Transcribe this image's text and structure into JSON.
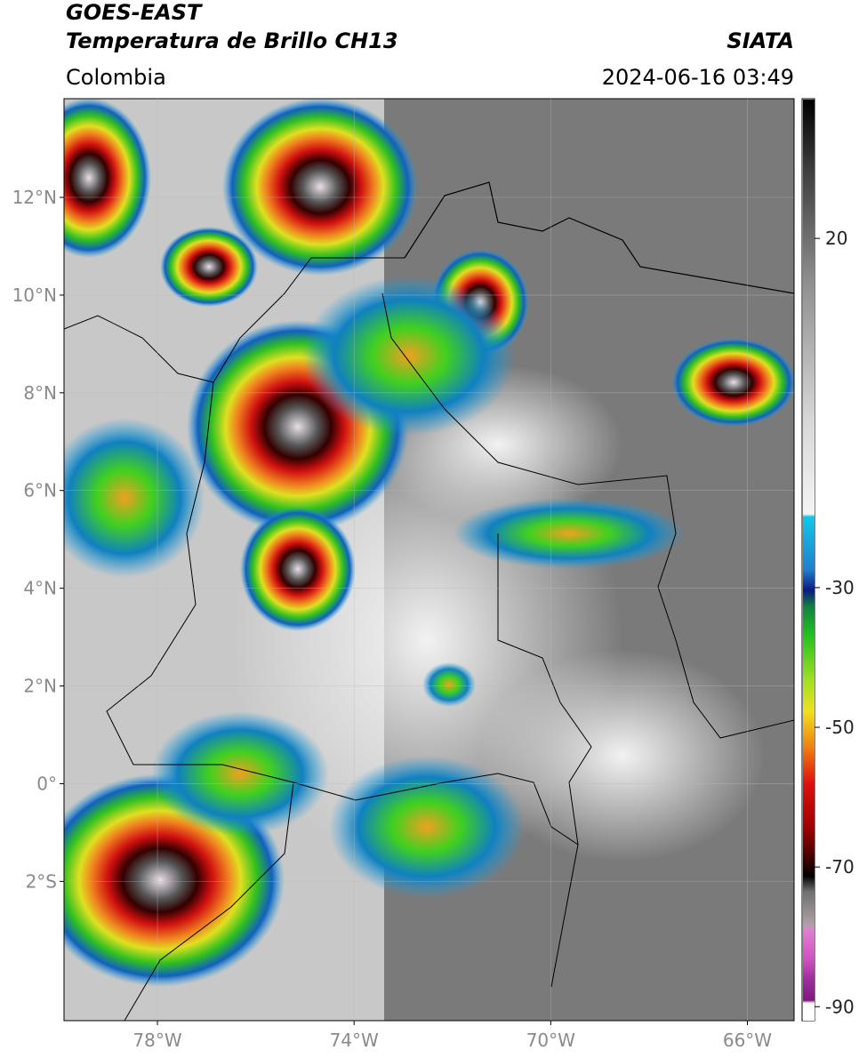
{
  "map": {
    "title": "GOES-EAST",
    "subtitle": "Temperatura de Brillo CH13",
    "source": "SIATA",
    "region": "Colombia",
    "datetime": "2024-06-16 03:49",
    "xlim": [
      -79.9,
      -65.05
    ],
    "ylim": [
      -4.85,
      14.02
    ],
    "yticks": [
      {
        "value": 12,
        "label": "12°N"
      },
      {
        "value": 10,
        "label": "10°N"
      },
      {
        "value": 8,
        "label": "8°N"
      },
      {
        "value": 6,
        "label": "6°N"
      },
      {
        "value": 4,
        "label": "4°N"
      },
      {
        "value": 2,
        "label": "2°N"
      },
      {
        "value": 0,
        "label": "0°"
      },
      {
        "value": -2,
        "label": "2°S"
      }
    ],
    "xticks": [
      {
        "value": -78,
        "label": "78°W"
      },
      {
        "value": -74,
        "label": "74°W"
      },
      {
        "value": -70,
        "label": "70°W"
      },
      {
        "value": -66,
        "label": "66°W"
      }
    ],
    "colorbar": {
      "lim": [
        40,
        -92
      ],
      "ticks": [
        20,
        -30,
        -50,
        -70,
        -90
      ]
    }
  }
}
